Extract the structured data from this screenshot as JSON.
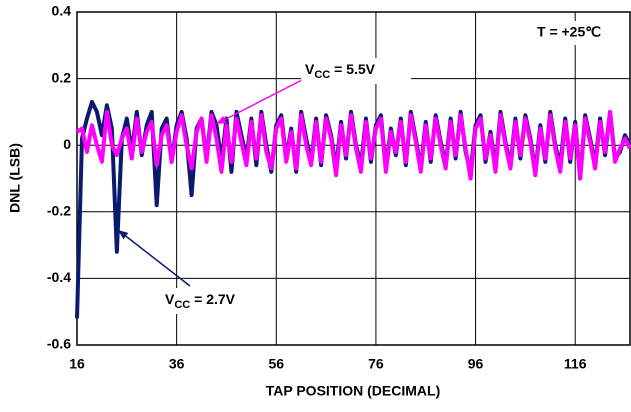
{
  "chart_data": {
    "type": "line",
    "x_label": "TAP POSITION (DECIMAL)",
    "y_label": "DNL (LSB)",
    "x": [
      16,
      17,
      18,
      19,
      20,
      21,
      22,
      23,
      24,
      25,
      26,
      27,
      28,
      29,
      30,
      31,
      32,
      33,
      34,
      35,
      36,
      37,
      38,
      39,
      40,
      41,
      42,
      43,
      44,
      45,
      46,
      47,
      48,
      49,
      50,
      51,
      52,
      53,
      54,
      55,
      56,
      57,
      58,
      59,
      60,
      61,
      62,
      63,
      64,
      65,
      66,
      67,
      68,
      69,
      70,
      71,
      72,
      73,
      74,
      75,
      76,
      77,
      78,
      79,
      80,
      81,
      82,
      83,
      84,
      85,
      86,
      87,
      88,
      89,
      90,
      91,
      92,
      93,
      94,
      95,
      96,
      97,
      98,
      99,
      100,
      101,
      102,
      103,
      104,
      105,
      106,
      107,
      108,
      109,
      110,
      111,
      112,
      113,
      114,
      115,
      116,
      117,
      118,
      119,
      120,
      121,
      122,
      123,
      124,
      125,
      126,
      127
    ],
    "series": [
      {
        "color": "#0a1a6e",
        "values": [
          -0.52,
          0.02,
          0.08,
          0.13,
          0.1,
          0.03,
          0.12,
          0.05,
          -0.32,
          0.02,
          0.08,
          -0.02,
          0.1,
          -0.03,
          0.06,
          0.1,
          -0.18,
          0.05,
          0.08,
          -0.05,
          0.06,
          0.1,
          0.02,
          -0.15,
          0.05,
          0.08,
          -0.04,
          0.1,
          0.06,
          -0.05,
          0.08,
          -0.08,
          0.1,
          0.03,
          -0.04,
          0.08,
          -0.06,
          0.1,
          0.0,
          -0.08,
          0.06,
          0.09,
          -0.04,
          0.05,
          -0.08,
          0.1,
          0.02,
          -0.05,
          0.08,
          -0.06,
          0.09,
          0.03,
          -0.07,
          0.07,
          -0.04,
          0.1,
          0.0,
          -0.06,
          0.08,
          -0.05,
          0.06,
          0.09,
          -0.07,
          0.05,
          -0.03,
          0.08,
          -0.06,
          0.1,
          0.02,
          -0.07,
          0.07,
          -0.05,
          0.09,
          0.01,
          -0.06,
          0.08,
          -0.04,
          0.1,
          -0.02,
          -0.08,
          0.06,
          0.09,
          -0.05,
          0.04,
          -0.07,
          0.1,
          0.01,
          -0.06,
          0.08,
          -0.04,
          0.09,
          0.02,
          -0.08,
          0.06,
          -0.05,
          0.1,
          0.0,
          -0.06,
          0.08,
          -0.05,
          0.07,
          -0.1,
          0.09,
          0.02,
          -0.06,
          0.08,
          -0.03,
          0.1,
          -0.04,
          -0.02,
          0.03,
          0.0
        ]
      },
      {
        "color": "#ff00ff",
        "values": [
          0.04,
          0.05,
          -0.02,
          0.06,
          0.0,
          -0.05,
          0.1,
          0.0,
          -0.03,
          0.02,
          0.05,
          -0.04,
          0.08,
          -0.02,
          0.04,
          0.07,
          -0.06,
          0.03,
          0.06,
          -0.05,
          0.04,
          0.09,
          0.0,
          -0.07,
          0.04,
          0.08,
          -0.05,
          0.09,
          0.02,
          -0.08,
          0.06,
          -0.05,
          0.08,
          0.01,
          -0.06,
          0.07,
          -0.04,
          0.09,
          -0.02,
          -0.07,
          0.05,
          0.08,
          -0.05,
          0.04,
          -0.07,
          0.09,
          0.0,
          -0.06,
          0.07,
          -0.05,
          0.08,
          0.02,
          -0.09,
          0.06,
          -0.03,
          0.09,
          -0.01,
          -0.08,
          0.07,
          -0.04,
          0.05,
          0.08,
          -0.08,
          0.04,
          -0.02,
          0.07,
          -0.05,
          0.09,
          0.01,
          -0.08,
          0.06,
          -0.04,
          0.08,
          0.0,
          -0.07,
          0.07,
          -0.03,
          0.09,
          -0.01,
          -0.1,
          0.05,
          0.08,
          -0.04,
          0.03,
          -0.08,
          0.09,
          0.0,
          -0.07,
          0.07,
          -0.03,
          0.08,
          0.01,
          -0.09,
          0.05,
          -0.04,
          0.09,
          -0.01,
          -0.08,
          0.07,
          -0.04,
          0.06,
          -0.1,
          0.08,
          0.01,
          -0.07,
          0.07,
          -0.02,
          0.1,
          -0.05,
          -0.01,
          0.02,
          -0.01
        ]
      }
    ],
    "annotations": [
      {
        "prefix": "V",
        "subscript": "CC",
        "suffix": " = 5.5V",
        "series": 1
      },
      {
        "prefix": "V",
        "subscript": "CC",
        "suffix": " = 2.7V",
        "series": 0
      },
      {
        "text": "T = +25℃"
      }
    ],
    "xlim": [
      16,
      127
    ],
    "xticks": [
      16,
      36,
      56,
      76,
      96,
      116
    ],
    "ylim": [
      -0.6,
      0.4
    ],
    "yticks": [
      0.4,
      0.2,
      0,
      -0.2,
      -0.4,
      -0.6
    ],
    "grid": true
  }
}
